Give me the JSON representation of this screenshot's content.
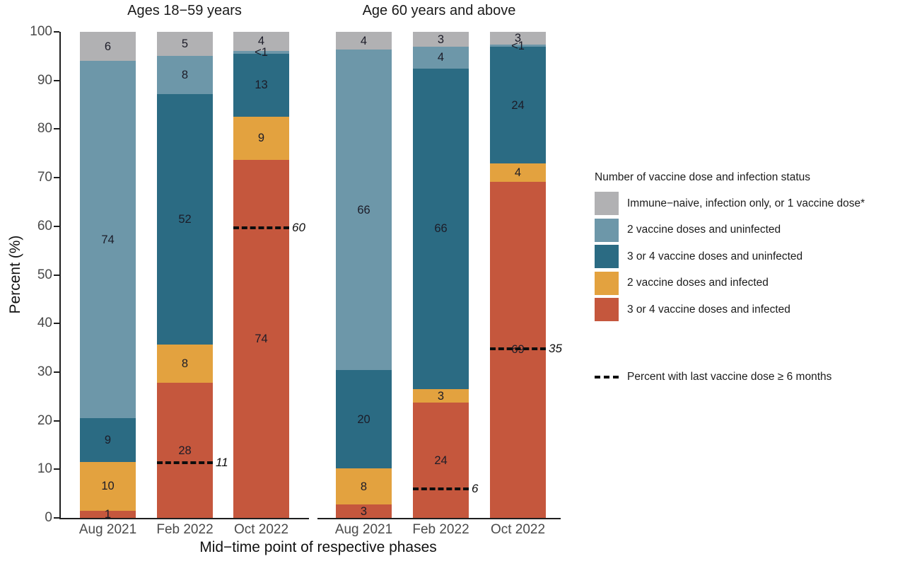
{
  "chart_data": {
    "type": "bar",
    "stacked": true,
    "ylabel": "Percent (%)",
    "xlabel": "Mid−time point of respective phases",
    "ylim": [
      0,
      100
    ],
    "y_ticks": [
      0,
      10,
      20,
      30,
      40,
      50,
      60,
      70,
      80,
      90,
      100
    ],
    "categories": [
      "Aug 2021",
      "Feb 2022",
      "Oct 2022"
    ],
    "stack_order_bottom_to_top": [
      "3 or 4 vaccine doses and infected",
      "2 vaccine doses and infected",
      "3 or 4 vaccine doses and uninfected",
      "2 vaccine doses and uninfected",
      "Immune−naive, infection only, or 1 vaccine dose*"
    ],
    "panels": [
      {
        "title": "Ages 18−59 years",
        "bars": [
          {
            "category": "Aug 2021",
            "segments": [
              {
                "key": "dose34_infected",
                "value": 1,
                "label": "1",
                "height": 1.5
              },
              {
                "key": "dose2_infected",
                "value": 10,
                "label": "10",
                "height": 10
              },
              {
                "key": "dose34_uninfected",
                "value": 9,
                "label": "9",
                "height": 9
              },
              {
                "key": "dose2_uninfected",
                "value": 74,
                "label": "74",
                "height": 73.5
              },
              {
                "key": "naive",
                "value": 6,
                "label": "6",
                "height": 6
              }
            ],
            "dashed": null
          },
          {
            "category": "Feb 2022",
            "segments": [
              {
                "key": "dose34_infected",
                "value": 28,
                "label": "28",
                "height": 27.8
              },
              {
                "key": "dose2_infected",
                "value": 8,
                "label": "8",
                "height": 7.9
              },
              {
                "key": "dose34_uninfected",
                "value": 52,
                "label": "52",
                "height": 51.5
              },
              {
                "key": "dose2_uninfected",
                "value": 8,
                "label": "8",
                "height": 7.8
              },
              {
                "key": "naive",
                "value": 5,
                "label": "5",
                "height": 5
              }
            ],
            "dashed": {
              "value": 11,
              "label": "11",
              "y": 11.4
            }
          },
          {
            "category": "Oct 2022",
            "segments": [
              {
                "key": "dose34_infected",
                "value": 74,
                "label": "74",
                "height": 73.7
              },
              {
                "key": "dose2_infected",
                "value": 9,
                "label": "9",
                "height": 8.9
              },
              {
                "key": "dose34_uninfected",
                "value": 13,
                "label": "13",
                "height": 12.9
              },
              {
                "key": "dose2_uninfected",
                "value": 0.5,
                "label": "<1",
                "height": 0.6
              },
              {
                "key": "naive",
                "value": 4,
                "label": "4",
                "height": 3.9
              }
            ],
            "dashed": {
              "value": 60,
              "label": "60",
              "y": 59.7
            }
          }
        ]
      },
      {
        "title": "Age 60 years and above",
        "bars": [
          {
            "category": "Aug 2021",
            "segments": [
              {
                "key": "dose34_infected",
                "value": 3,
                "label": "3",
                "height": 2.7
              },
              {
                "key": "dose2_infected",
                "value": 8,
                "label": "8",
                "height": 7.5
              },
              {
                "key": "dose34_uninfected",
                "value": 20,
                "label": "20",
                "height": 20.2
              },
              {
                "key": "dose2_uninfected",
                "value": 66,
                "label": "66",
                "height": 65.9
              },
              {
                "key": "naive",
                "value": 4,
                "label": "4",
                "height": 3.7
              }
            ],
            "dashed": null
          },
          {
            "category": "Feb 2022",
            "segments": [
              {
                "key": "dose34_infected",
                "value": 24,
                "label": "24",
                "height": 23.7
              },
              {
                "key": "dose2_infected",
                "value": 3,
                "label": "3",
                "height": 2.8
              },
              {
                "key": "dose34_uninfected",
                "value": 66,
                "label": "66",
                "height": 66.0
              },
              {
                "key": "dose2_uninfected",
                "value": 4,
                "label": "4",
                "height": 4.4
              },
              {
                "key": "naive",
                "value": 3,
                "label": "3",
                "height": 3.1
              }
            ],
            "dashed": {
              "value": 6,
              "label": "6",
              "y": 6
            }
          },
          {
            "category": "Oct 2022",
            "segments": [
              {
                "key": "dose34_infected",
                "value": 69,
                "label": "69",
                "height": 69.2
              },
              {
                "key": "dose2_infected",
                "value": 4,
                "label": "4",
                "height": 3.7
              },
              {
                "key": "dose34_uninfected",
                "value": 24,
                "label": "24",
                "height": 24.0
              },
              {
                "key": "dose2_uninfected",
                "value": 0.5,
                "label": "<1",
                "height": 0.5
              },
              {
                "key": "naive",
                "value": 3,
                "label": "3",
                "height": 2.6
              }
            ],
            "dashed": {
              "value": 35,
              "label": "35",
              "y": 34.8
            }
          }
        ]
      }
    ]
  },
  "legend": {
    "title": "Number of vaccine dose and infection status",
    "items": [
      {
        "key": "naive",
        "label": "Immune−naive, infection only, or 1 vaccine dose*",
        "color": "#b1b1b3"
      },
      {
        "key": "dose2_uninfected",
        "label": "2 vaccine doses and uninfected",
        "color": "#6d97a9"
      },
      {
        "key": "dose34_uninfected",
        "label": "3 or 4 vaccine doses and uninfected",
        "color": "#2b6b83"
      },
      {
        "key": "dose2_infected",
        "label": "2 vaccine doses and infected",
        "color": "#e3a23f"
      },
      {
        "key": "dose34_infected",
        "label": "3 or 4 vaccine doses and infected",
        "color": "#c5573d"
      }
    ],
    "dashed_label": "Percent with last vaccine dose ≥ 6 months"
  }
}
